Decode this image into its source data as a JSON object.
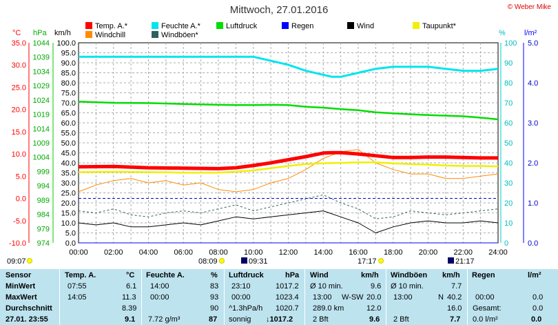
{
  "title": "Mittwoch, 27.01.2016",
  "copyright": "© Weber Mike",
  "legend": [
    {
      "label": "Temp. A.*",
      "color": "#ff0000"
    },
    {
      "label": "Feuchte A.*",
      "color": "#00e5ee"
    },
    {
      "label": "Luftdruck",
      "color": "#00dd00"
    },
    {
      "label": "Regen",
      "color": "#0000ff"
    },
    {
      "label": "Wind",
      "color": "#000000"
    },
    {
      "label": "Taupunkt*",
      "color": "#f0f000"
    },
    {
      "label": "Windchill",
      "color": "#ff8c00"
    },
    {
      "label": "Windböen*",
      "color": "#2f5f5f"
    }
  ],
  "axes": {
    "temp_unit": "°C",
    "pressure_unit": "hPa",
    "wind_unit": "km/h",
    "humidity_unit": "%",
    "rain_unit": "l/m²",
    "temp_ticks": [
      "35.0",
      "30.0",
      "25.0",
      "20.0",
      "15.0",
      "10.0",
      "5.0",
      "0.0",
      "-5.0",
      "-10.0"
    ],
    "pressure_ticks": [
      "1044",
      "1039",
      "1034",
      "1029",
      "1024",
      "1019",
      "1014",
      "1009",
      "1004",
      "999",
      "994",
      "989",
      "984",
      "979",
      "974"
    ],
    "wind_ticks": [
      "100.0",
      "95.0",
      "90.0",
      "85.0",
      "80.0",
      "75.0",
      "70.0",
      "65.0",
      "60.0",
      "55.0",
      "50.0",
      "45.0",
      "40.0",
      "35.0",
      "30.0",
      "25.0",
      "20.0",
      "15.0",
      "10.0",
      "5.0",
      "0.0"
    ],
    "humidity_ticks": [
      "100",
      "90",
      "80",
      "70",
      "60",
      "50",
      "40",
      "30",
      "20",
      "10",
      "0"
    ],
    "rain_ticks": [
      "5.0",
      "4.0",
      "3.0",
      "2.0",
      "1.0",
      "0.0"
    ],
    "x_ticks": [
      "00:00",
      "02:00",
      "04:00",
      "06:00",
      "08:00",
      "10:00",
      "12:00",
      "14:00",
      "16:00",
      "18:00",
      "20:00",
      "22:00",
      "24:00"
    ]
  },
  "sun_labels": {
    "sunrise_civil": "09:07",
    "sunrise": "08:09",
    "moonset": "09:31",
    "sunset": "17:17",
    "moonrise": "21:17"
  },
  "chart_data": {
    "type": "line",
    "x_unit": "hours",
    "xlim": [
      0,
      24
    ],
    "series": [
      {
        "name": "Temp. A.*",
        "axis": "°C",
        "ylim": [
          -10,
          35
        ],
        "x": [
          0,
          2,
          4,
          6,
          8,
          9,
          10,
          11,
          12,
          13,
          14,
          14.5,
          15,
          16,
          17,
          18,
          19,
          20,
          21,
          22,
          23,
          24
        ],
        "y": [
          7.1,
          7.2,
          6.9,
          6.8,
          6.7,
          6.9,
          7.4,
          8.0,
          8.7,
          9.4,
          10.2,
          10.3,
          10.3,
          10.0,
          9.6,
          9.2,
          9.2,
          9.3,
          9.3,
          9.2,
          9.1,
          9.1
        ]
      },
      {
        "name": "Feuchte A.*",
        "axis": "%",
        "ylim": [
          0,
          100
        ],
        "x": [
          0,
          2,
          4,
          6,
          8,
          9,
          10,
          11,
          12,
          13,
          14,
          14.5,
          15,
          15.5,
          16,
          17,
          18,
          19,
          20,
          21,
          22,
          23,
          24
        ],
        "y": [
          93,
          93,
          93,
          93,
          93,
          93,
          93,
          91,
          89,
          86,
          84,
          83,
          83,
          84,
          85,
          87,
          88,
          88,
          88,
          87,
          86,
          86,
          87
        ]
      },
      {
        "name": "Luftdruck",
        "axis": "hPa",
        "ylim": [
          974,
          1044
        ],
        "x": [
          0,
          2,
          4,
          6,
          8,
          9,
          10,
          11,
          12,
          13,
          14,
          15,
          16,
          17,
          18,
          19,
          20,
          21,
          22,
          23,
          24
        ],
        "y": [
          1023.4,
          1023.0,
          1022.9,
          1022.6,
          1022.3,
          1022.2,
          1022.2,
          1022.3,
          1022.2,
          1021.6,
          1021.3,
          1020.8,
          1020.4,
          1019.7,
          1019.3,
          1019.0,
          1018.7,
          1018.5,
          1018.3,
          1017.8,
          1017.2
        ]
      },
      {
        "name": "Taupunkt*",
        "axis": "°C",
        "ylim": [
          -10,
          35
        ],
        "x": [
          0,
          2,
          4,
          6,
          8,
          9,
          10,
          11,
          12,
          13,
          14,
          15,
          16,
          17,
          18,
          19,
          20,
          21,
          22,
          23,
          24
        ],
        "y": [
          5.9,
          6.0,
          5.9,
          5.8,
          5.8,
          6.0,
          6.3,
          6.8,
          7.3,
          7.7,
          7.9,
          8.0,
          8.1,
          8.1,
          7.9,
          7.7,
          7.6,
          7.4,
          7.3,
          7.3,
          7.2
        ]
      },
      {
        "name": "Windchill",
        "axis": "°C",
        "ylim": [
          -10,
          35
        ],
        "x": [
          0,
          1,
          2,
          3,
          4,
          5,
          6,
          7,
          8,
          9,
          10,
          11,
          12,
          13,
          14,
          15,
          16,
          17,
          18,
          19,
          20,
          21,
          22,
          23,
          24
        ],
        "y": [
          1.5,
          3.0,
          4.0,
          4.5,
          3.5,
          4.0,
          3.0,
          3.5,
          2.0,
          1.5,
          2.0,
          3.5,
          4.5,
          6.5,
          9.0,
          10.5,
          11.0,
          8.0,
          6.5,
          5.5,
          5.5,
          4.5,
          4.5,
          5.0,
          5.5
        ]
      },
      {
        "name": "Windböen*",
        "axis": "km/h",
        "ylim": [
          0,
          100
        ],
        "x": [
          0,
          1,
          2,
          3,
          4,
          5,
          6,
          7,
          8,
          9,
          10,
          11,
          12,
          13,
          14,
          15,
          16,
          17,
          18,
          19,
          20,
          21,
          22,
          23,
          24
        ],
        "y": [
          16,
          15,
          17,
          14,
          13,
          15,
          16,
          15,
          17,
          19,
          16,
          18,
          20,
          22,
          24,
          20,
          17,
          12,
          13,
          16,
          15,
          14,
          15,
          16,
          17
        ]
      },
      {
        "name": "Wind",
        "axis": "km/h",
        "ylim": [
          0,
          100
        ],
        "x": [
          0,
          1,
          2,
          3,
          4,
          5,
          6,
          7,
          8,
          9,
          10,
          11,
          12,
          13,
          14,
          15,
          16,
          17,
          18,
          19,
          20,
          21,
          22,
          23,
          24
        ],
        "y": [
          10,
          9,
          10,
          8,
          8,
          9,
          10,
          9,
          11,
          13,
          12,
          13,
          14,
          15,
          16,
          13,
          10,
          5,
          8,
          10,
          11,
          10,
          10,
          11,
          10
        ]
      },
      {
        "name": "Regen",
        "axis": "l/m²",
        "ylim": [
          0,
          5
        ],
        "x": [
          0,
          24
        ],
        "y": [
          0,
          0
        ]
      }
    ]
  },
  "summary": {
    "col_sensor": {
      "header": "Sensor",
      "r1": "MinWert",
      "r2": "MaxWert",
      "r3": "Durchschnitt",
      "r4": "27.01. 23:55"
    },
    "col_temp": {
      "header": "Temp. A.",
      "unit": "°C",
      "r1_time": "07:55",
      "r1_val": "6.1",
      "r2_time": "14:05",
      "r2_val": "11.3",
      "r3_val": "8.39",
      "r4_val": "9.1"
    },
    "col_hum": {
      "header": "Feuchte A.",
      "unit": "%",
      "r1_time": "14:00",
      "r1_val": "83",
      "r2_time": "00:00",
      "r2_val": "93",
      "r3_val": "90",
      "r4_text": "7.72 g/m³",
      "r4_val": "87"
    },
    "col_press": {
      "header": "Luftdruck",
      "unit": "hPa",
      "r1_time": "23:10",
      "r1_val": "1017.2",
      "r2_time": "00:00",
      "r2_val": "1023.4",
      "r3_text": "^1.3hPa/h",
      "r3_val": "1020.7",
      "r4_text": "sonnig",
      "r4_val": "↓1017.2"
    },
    "col_wind": {
      "header": "Wind",
      "unit": "km/h",
      "r1_text": "Ø 10 min.",
      "r1_val": "9.6",
      "r2_time": "13:00",
      "r2_dir": "W-SW",
      "r2_val": "20.0",
      "r3_text": "289.0 km",
      "r3_val": "12.0",
      "r4_text": "2 Bft",
      "r4_val": "9.6"
    },
    "col_gust": {
      "header": "Windböen",
      "unit": "km/h",
      "r1_text": "Ø 10 min.",
      "r1_val": "7.7",
      "r2_time": "13:00",
      "r2_dir": "N",
      "r2_val": "40.2",
      "r3_val": "16.0",
      "r4_text": "2 Bft",
      "r4_val": "7.7"
    },
    "col_rain": {
      "header": "Regen",
      "unit": "l/m²",
      "r2_time": "00:00",
      "r2_val": "0.0",
      "r3_text": "Gesamt:",
      "r3_val": "0.0",
      "r4_text": "0.0 l/m²",
      "r4_val": "0.0"
    }
  }
}
